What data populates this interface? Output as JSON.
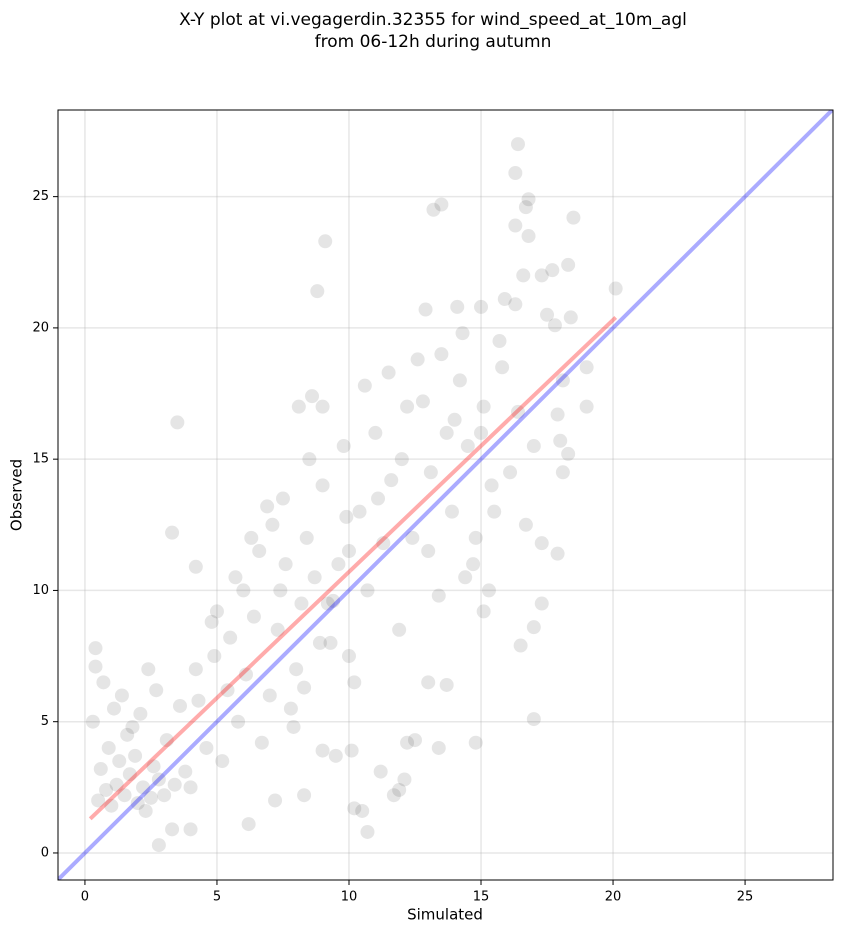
{
  "chart_data": {
    "type": "scatter",
    "title": [
      "X-Y plot at vi.vegagerdin.32355 for wind_speed_at_10m_agl",
      "from 06-12h during autumn"
    ],
    "x_label": "Simulated",
    "y_label": "Observed",
    "xlim": [
      -1.02,
      28.33
    ],
    "ylim": [
      -1.03,
      28.3
    ],
    "xticks": [
      0,
      5,
      10,
      15,
      20,
      25
    ],
    "yticks": [
      0,
      5,
      10,
      15,
      20,
      25
    ],
    "grid": true,
    "point_color": "#000000",
    "point_opacity": 0.1,
    "x": [
      16.4,
      16.3,
      16.8,
      16.7,
      16.3,
      16.8,
      13.2,
      13.5,
      9.1,
      18.5,
      18.3,
      17.7,
      17.3,
      16.6,
      20.1,
      8.8,
      15.9,
      16.3,
      15.0,
      12.9,
      14.1,
      17.5,
      17.8,
      18.4,
      3.5,
      3.3,
      4.2,
      0.4,
      0.4,
      2.8,
      10.7,
      10.5,
      10.2,
      11.7,
      11.9,
      12.1,
      14.8,
      13.4,
      17.0,
      16.5,
      17.0,
      17.3,
      17.9,
      17.3,
      15.1,
      15.3,
      14.4,
      18.1,
      18.3,
      19.0,
      19.0,
      18.1,
      18.0,
      17.9,
      9.0,
      8.1,
      8.6,
      12.5,
      13.7,
      13.0,
      12.2,
      11.2,
      10.1,
      9.5,
      9.0,
      8.3,
      7.2,
      6.2,
      4.0,
      3.3,
      0.5,
      0.8,
      1.0,
      1.2,
      1.5,
      1.7,
      2.0,
      2.2,
      2.5,
      2.8,
      0.6,
      0.9,
      1.3,
      1.6,
      1.9,
      2.3,
      2.6,
      3.0,
      3.4,
      3.8,
      0.3,
      0.7,
      1.1,
      1.4,
      1.8,
      2.1,
      2.4,
      2.7,
      3.1,
      3.6,
      4.0,
      4.3,
      4.6,
      4.9,
      5.2,
      5.5,
      5.8,
      6.1,
      6.4,
      6.7,
      4.2,
      4.8,
      5.4,
      6.0,
      6.6,
      7.0,
      7.3,
      7.6,
      7.9,
      8.2,
      7.1,
      7.5,
      8.0,
      8.4,
      8.7,
      9.0,
      9.3,
      9.6,
      9.9,
      10.2,
      8.5,
      9.2,
      9.8,
      10.4,
      10.7,
      11.0,
      11.3,
      11.6,
      11.9,
      12.2,
      10.0,
      10.6,
      11.1,
      11.5,
      12.0,
      12.4,
      12.8,
      13.1,
      13.4,
      13.7,
      12.6,
      13.0,
      13.5,
      13.9,
      14.2,
      14.5,
      14.8,
      15.1,
      15.4,
      15.7,
      14.0,
      14.3,
      14.7,
      15.0,
      15.5,
      15.8,
      16.1,
      16.4,
      16.7,
      17.0,
      5.0,
      5.7,
      6.3,
      6.9,
      7.4,
      7.8,
      8.3,
      8.9,
      9.4,
      10.0
    ],
    "values": [
      27.0,
      25.9,
      24.9,
      24.6,
      23.9,
      23.5,
      24.5,
      24.7,
      23.3,
      24.2,
      22.4,
      22.2,
      22.0,
      22.0,
      21.5,
      21.4,
      21.1,
      20.9,
      20.8,
      20.7,
      20.8,
      20.5,
      20.1,
      20.4,
      16.4,
      12.2,
      10.9,
      7.8,
      7.1,
      0.3,
      0.8,
      1.6,
      1.7,
      2.2,
      2.4,
      2.8,
      4.2,
      4.0,
      5.1,
      7.9,
      8.6,
      9.5,
      11.4,
      11.8,
      9.2,
      10.0,
      10.5,
      14.5,
      15.2,
      17.0,
      18.5,
      18.0,
      15.7,
      16.7,
      17.0,
      17.0,
      17.4,
      4.3,
      6.4,
      6.5,
      4.2,
      3.1,
      3.9,
      3.7,
      3.9,
      2.2,
      2.0,
      1.1,
      0.9,
      0.9,
      2.0,
      2.4,
      1.8,
      2.6,
      2.2,
      3.0,
      1.9,
      2.5,
      2.1,
      2.8,
      3.2,
      4.0,
      3.5,
      4.5,
      3.7,
      1.6,
      3.3,
      2.2,
      2.6,
      3.1,
      5.0,
      6.5,
      5.5,
      6.0,
      4.8,
      5.3,
      7.0,
      6.2,
      4.3,
      5.6,
      2.5,
      5.8,
      4.0,
      7.5,
      3.5,
      8.2,
      5.0,
      6.8,
      9.0,
      4.2,
      7.0,
      8.8,
      6.2,
      10.0,
      11.5,
      6.0,
      8.5,
      11.0,
      4.8,
      9.5,
      12.5,
      13.5,
      7.0,
      12.0,
      10.5,
      14.0,
      8.0,
      11.0,
      12.8,
      6.5,
      15.0,
      9.5,
      15.5,
      13.0,
      10.0,
      16.0,
      11.8,
      14.2,
      8.5,
      17.0,
      7.5,
      17.8,
      13.5,
      18.3,
      15.0,
      12.0,
      17.2,
      14.5,
      9.8,
      16.0,
      18.8,
      11.5,
      19.0,
      13.0,
      18.0,
      15.5,
      12.0,
      17.0,
      14.0,
      19.5,
      16.5,
      19.8,
      11.0,
      16.0,
      13.0,
      18.5,
      14.5,
      16.8,
      12.5,
      15.5,
      9.2,
      10.5,
      12.0,
      13.2,
      10.0,
      5.5,
      6.3,
      8.0,
      9.6,
      11.5
    ],
    "lines": [
      {
        "color": "#ff0000",
        "x": [
          0.2,
          20.1
        ],
        "y": [
          1.3,
          20.4
        ]
      },
      {
        "color": "#0000ff",
        "x": [
          -1.02,
          28.33
        ],
        "y": [
          -1.02,
          28.33
        ]
      }
    ]
  }
}
